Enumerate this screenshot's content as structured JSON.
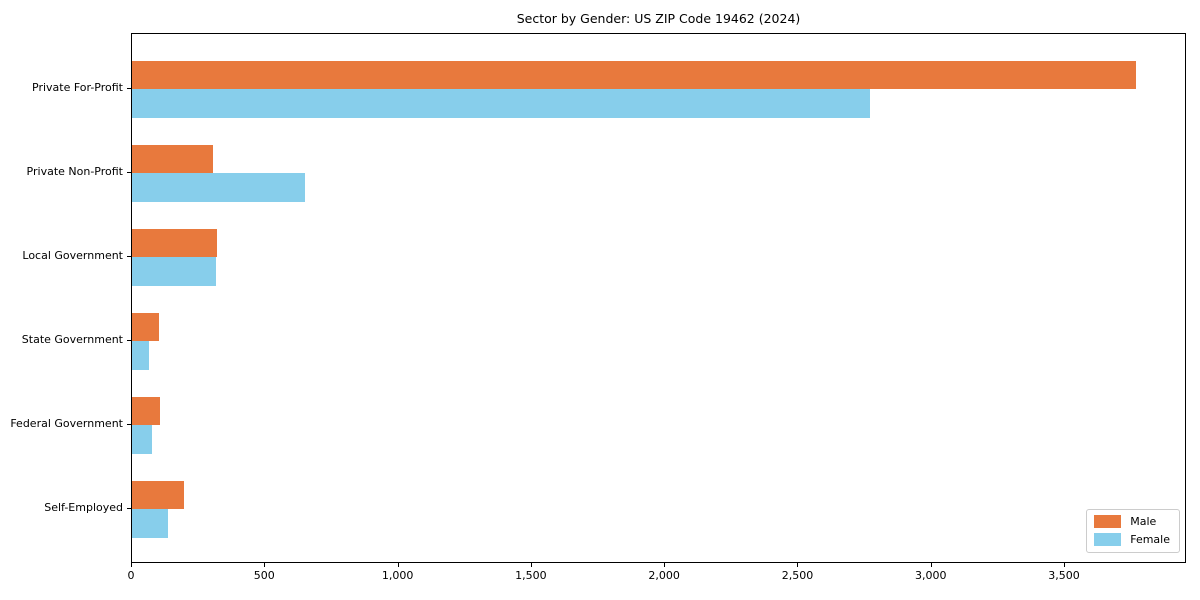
{
  "chart_data": {
    "type": "bar",
    "orientation": "horizontal",
    "title": "Sector by Gender: US ZIP Code 19462 (2024)",
    "categories": [
      "Private For-Profit",
      "Private Non-Profit",
      "Local Government",
      "State Government",
      "Federal Government",
      "Self-Employed"
    ],
    "series": [
      {
        "name": "Male",
        "color": "#e8793d",
        "values": [
          3765,
          304,
          319,
          100,
          106,
          196
        ]
      },
      {
        "name": "Female",
        "color": "#87ceeb",
        "values": [
          2770,
          649,
          316,
          65,
          74,
          134
        ]
      }
    ],
    "xlabel": "",
    "ylabel": "",
    "xlim": [
      0,
      3950
    ],
    "xticks": [
      0,
      500,
      1000,
      1500,
      2000,
      2500,
      3000,
      3500
    ],
    "xtick_labels": [
      "0",
      "500",
      "1,000",
      "1,500",
      "2,000",
      "2,500",
      "3,000",
      "3,500"
    ],
    "grid": false,
    "legend": {
      "position": "lower right"
    }
  }
}
